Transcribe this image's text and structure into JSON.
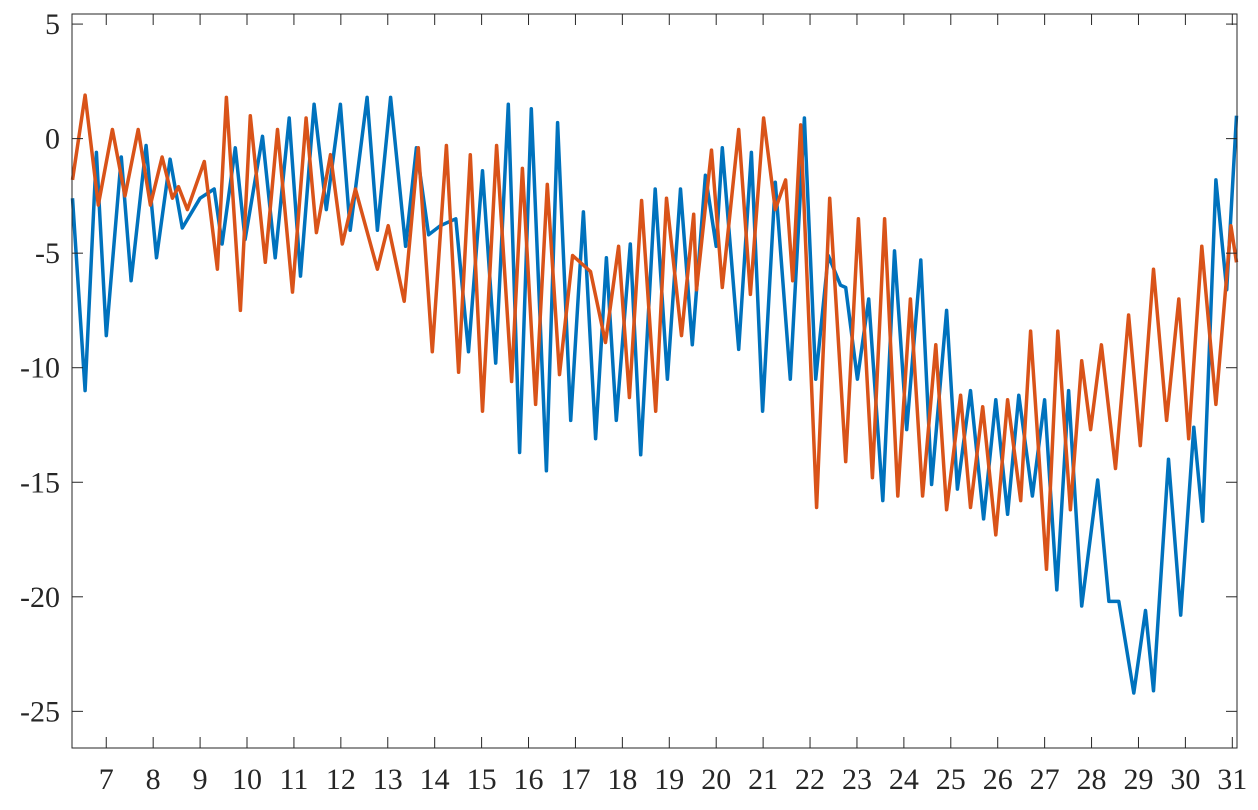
{
  "chart_data": {
    "type": "line",
    "xlim": [
      6.27,
      31.1
    ],
    "ylim": [
      -26.6,
      5.44
    ],
    "xticks": [
      7,
      8,
      9,
      10,
      11,
      12,
      13,
      14,
      15,
      16,
      17,
      18,
      19,
      20,
      21,
      22,
      23,
      24,
      25,
      26,
      27,
      28,
      29,
      30,
      31
    ],
    "yticks": [
      5,
      0,
      -5,
      -10,
      -15,
      -20,
      -25
    ],
    "series": [
      {
        "color": "#0072bd",
        "x": [
          6.28,
          6.55,
          6.79,
          7.0,
          7.32,
          7.53,
          7.85,
          8.07,
          8.36,
          8.62,
          9.0,
          9.3,
          9.47,
          9.75,
          9.96,
          10.33,
          10.6,
          10.9,
          11.14,
          11.43,
          11.69,
          11.99,
          12.2,
          12.56,
          12.78,
          13.06,
          13.38,
          13.61,
          13.87,
          14.12,
          14.45,
          14.72,
          15.02,
          15.3,
          15.57,
          15.81,
          16.06,
          16.38,
          16.62,
          16.9,
          17.17,
          17.43,
          17.66,
          17.87,
          18.17,
          18.39,
          18.7,
          18.96,
          19.24,
          19.49,
          19.77,
          20.0,
          20.13,
          20.48,
          20.75,
          20.99,
          21.26,
          21.58,
          21.88,
          22.12,
          22.39,
          22.65,
          22.76,
          23.01,
          23.25,
          23.55,
          23.8,
          24.06,
          24.36,
          24.59,
          24.91,
          25.14,
          25.42,
          25.7,
          25.96,
          26.21,
          26.45,
          26.74,
          27.0,
          27.26,
          27.51,
          27.79,
          28.13,
          28.37,
          28.58,
          28.9,
          29.15,
          29.32,
          29.64,
          29.9,
          30.18,
          30.37,
          30.65,
          30.88,
          31.09
        ],
        "values": [
          -2.6,
          -11,
          -0.6,
          -8.6,
          -0.8,
          -6.2,
          -0.3,
          -5.2,
          -0.9,
          -3.9,
          -2.6,
          -2.2,
          -4.6,
          -0.4,
          -4.4,
          0.1,
          -5.2,
          0.9,
          -6,
          1.5,
          -3.1,
          1.5,
          -4,
          1.8,
          -4,
          1.8,
          -4.7,
          -0.4,
          -4.2,
          -3.8,
          -3.5,
          -9.3,
          -1.4,
          -9.8,
          1.5,
          -13.7,
          1.3,
          -14.5,
          0.7,
          -12.3,
          -3.2,
          -13.1,
          -5.2,
          -12.3,
          -4.6,
          -13.8,
          -2.2,
          -10.5,
          -2.2,
          -9,
          -1.6,
          -4.7,
          -0.4,
          -9.2,
          -0.6,
          -11.9,
          -1.9,
          -10.5,
          0.9,
          -10.5,
          -5.1,
          -6.4,
          -6.5,
          -10.5,
          -7,
          -15.8,
          -4.9,
          -12.7,
          -5.3,
          -15.1,
          -7.5,
          -15.3,
          -11,
          -16.6,
          -11.4,
          -16.4,
          -11.2,
          -15.6,
          -11.4,
          -19.7,
          -11,
          -20.4,
          -14.9,
          -20.2,
          -20.2,
          -24.2,
          -20.6,
          -24.1,
          -14,
          -20.8,
          -12.6,
          -16.7,
          -1.8,
          -6.6,
          1.0
        ]
      },
      {
        "color": "#d95319",
        "x": [
          6.28,
          6.55,
          6.83,
          7.13,
          7.4,
          7.68,
          7.94,
          8.19,
          8.41,
          8.54,
          8.73,
          9.09,
          9.37,
          9.56,
          9.86,
          10.07,
          10.39,
          10.65,
          10.97,
          11.26,
          11.48,
          11.78,
          12.03,
          12.31,
          12.78,
          13.01,
          13.35,
          13.65,
          13.95,
          14.25,
          14.51,
          14.76,
          15.02,
          15.32,
          15.64,
          15.87,
          16.15,
          16.4,
          16.66,
          16.94,
          17.32,
          17.64,
          17.92,
          18.15,
          18.41,
          18.71,
          18.94,
          19.26,
          19.52,
          19.58,
          19.9,
          20.13,
          20.48,
          20.73,
          21.01,
          21.26,
          21.48,
          21.63,
          21.8,
          22.14,
          22.42,
          22.76,
          23.03,
          23.33,
          23.59,
          23.87,
          24.14,
          24.4,
          24.68,
          24.91,
          25.21,
          25.42,
          25.68,
          25.96,
          26.21,
          26.49,
          26.7,
          27.04,
          27.28,
          27.55,
          27.79,
          27.98,
          28.21,
          28.51,
          28.79,
          29.04,
          29.32,
          29.6,
          29.86,
          30.07,
          30.35,
          30.65,
          30.97,
          31.09
        ],
        "values": [
          -1.8,
          1.9,
          -2.9,
          0.4,
          -2.5,
          0.4,
          -2.9,
          -0.8,
          -2.6,
          -2.1,
          -3.1,
          -1,
          -5.7,
          1.8,
          -7.5,
          1,
          -5.4,
          0.4,
          -6.7,
          0.9,
          -4.1,
          -0.7,
          -4.6,
          -2.2,
          -5.7,
          -3.8,
          -7.1,
          -0.4,
          -9.3,
          -0.3,
          -10.2,
          -0.7,
          -11.9,
          -0.3,
          -10.6,
          -1.3,
          -11.6,
          -2,
          -10.3,
          -5.1,
          -5.8,
          -8.9,
          -4.7,
          -11.3,
          -2.7,
          -11.9,
          -2.6,
          -8.6,
          -3.3,
          -6.6,
          -0.5,
          -6.5,
          0.4,
          -6.8,
          0.9,
          -3.1,
          -1.8,
          -6.2,
          0.6,
          -16.1,
          -2.6,
          -14.1,
          -3.5,
          -14.8,
          -3.5,
          -15.6,
          -7,
          -15.6,
          -9,
          -16.2,
          -11.2,
          -16.1,
          -11.7,
          -17.3,
          -11.4,
          -15.8,
          -8.4,
          -18.8,
          -8.4,
          -16.2,
          -9.7,
          -12.7,
          -9,
          -14.4,
          -7.7,
          -13.4,
          -5.7,
          -12.3,
          -7,
          -13.1,
          -4.7,
          -11.6,
          -3.8,
          -5.4
        ]
      }
    ]
  }
}
